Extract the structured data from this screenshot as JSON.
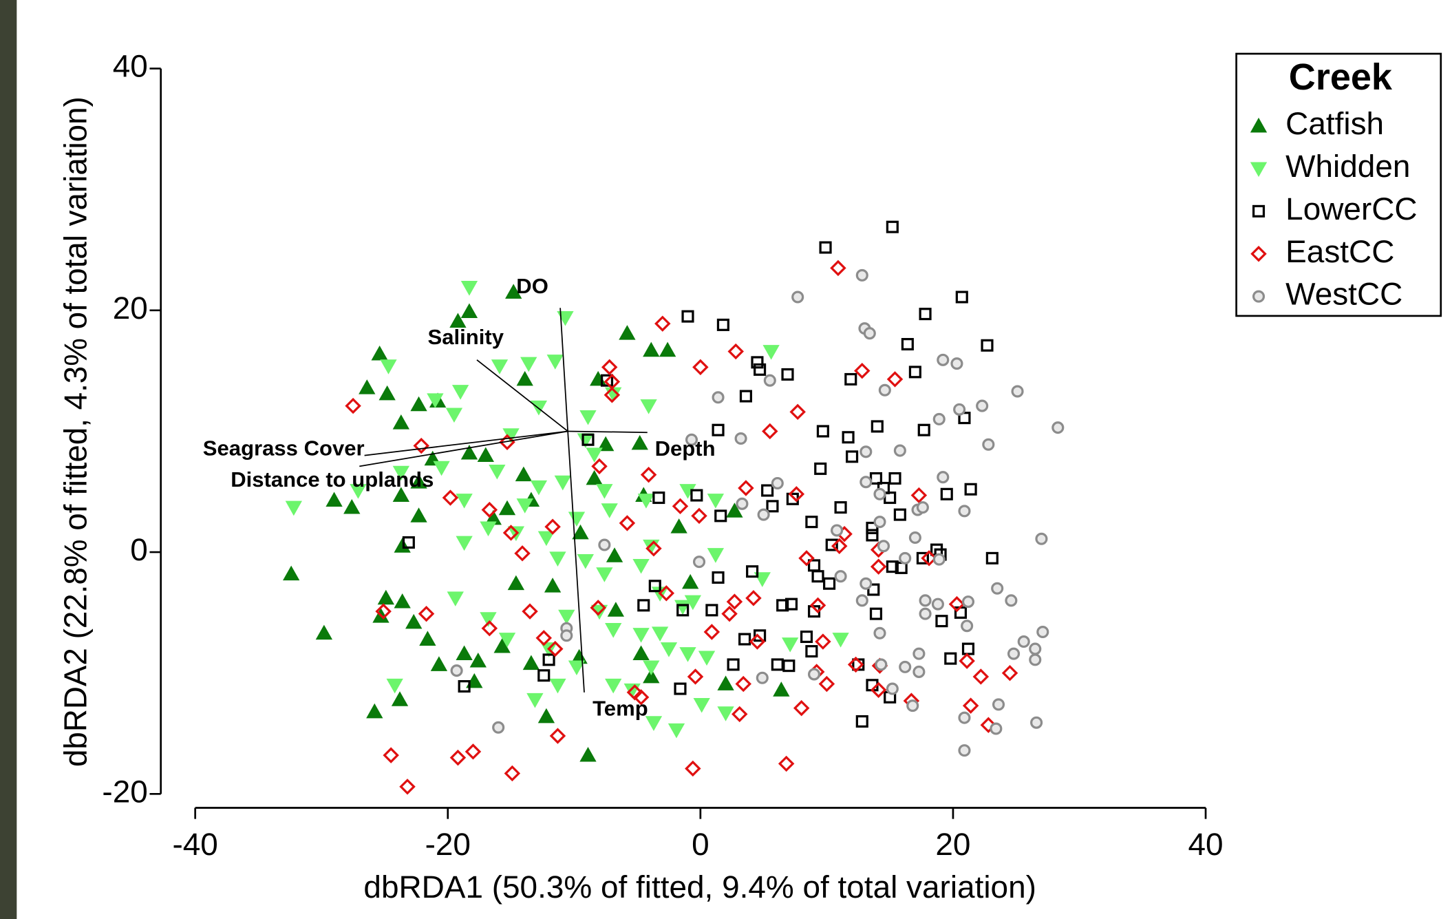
{
  "chart_data": {
    "type": "scatter",
    "x_label": "dbRDA1 (50.3% of fitted, 9.4% of total variation)",
    "y_label": "dbRDA2 (22.8% of fitted, 4.3% of total variation)",
    "xlim": [
      -40,
      40
    ],
    "xticks": [
      -40,
      -20,
      0,
      20,
      40
    ],
    "ylim": [
      -20,
      40
    ],
    "yticks": [
      -20,
      0,
      20,
      40
    ],
    "legend_title": "Creek",
    "legend_position": "outside-top-right",
    "series": [
      {
        "name": "Catfish",
        "color": "#0a7a0a",
        "marker": "triangle-up",
        "filled": true,
        "x": [
          -14.8,
          -18.3,
          -19.2,
          -25.4,
          -26.4,
          -24.8,
          -22.3,
          -20.8,
          -23.7,
          -13.9,
          -8.1,
          -5.8,
          -3.9,
          -2.6,
          -18.3,
          -17.0,
          -21.2,
          -22.3,
          -14.0,
          -13.4,
          -15.3,
          -16.4,
          -29.0,
          -27.6,
          -23.7,
          -22.3,
          -23.6,
          -32.4,
          -29.8,
          -25.8,
          -23.8,
          -24.9,
          -23.6,
          -22.7,
          -21.6,
          -20.7,
          -18.7,
          -17.6,
          -17.9,
          -15.7,
          -13.4,
          -12.2,
          -8.9,
          -14.6,
          -11.7,
          -9.5,
          -6.8,
          -4.5,
          -1.7,
          -6.7,
          -4.8,
          -7.5,
          -8.4,
          -0.8,
          2.7,
          6.4,
          2.0,
          -3.9,
          -9.6,
          -25.3,
          -4.7
        ],
        "y": [
          21.5,
          19.9,
          19.1,
          16.4,
          13.6,
          13.1,
          12.2,
          12.5,
          10.7,
          14.3,
          14.3,
          18.1,
          16.7,
          16.7,
          8.2,
          8.0,
          7.7,
          5.8,
          6.4,
          4.3,
          3.6,
          2.8,
          4.3,
          3.7,
          4.7,
          3.0,
          0.5,
          -1.8,
          -6.7,
          -13.2,
          -12.2,
          -3.8,
          -4.1,
          -5.8,
          -7.2,
          -9.3,
          -8.4,
          -9.0,
          -10.7,
          -7.8,
          -9.2,
          -13.6,
          -16.8,
          -2.6,
          -2.8,
          1.6,
          -0.3,
          4.7,
          2.1,
          -4.8,
          9.0,
          8.9,
          6.1,
          -2.5,
          3.4,
          -11.4,
          -10.9,
          -10.3,
          -8.7,
          -5.3,
          -8.4
        ]
      },
      {
        "name": "Whidden",
        "color": "#6cf56c",
        "marker": "triangle-down",
        "filled": true,
        "x": [
          -18.3,
          -10.7,
          -13.6,
          -11.5,
          -15.9,
          -19.0,
          -21.0,
          -19.5,
          -24.7,
          -8.9,
          -6.9,
          -4.1,
          -12.8,
          -9.1,
          -15.0,
          -8.4,
          -10.9,
          -12.8,
          -16.1,
          -13.9,
          -20.5,
          -23.7,
          -32.2,
          -27.1,
          -18.7,
          -16.8,
          -14.6,
          -18.7,
          -12.2,
          -9.8,
          -7.2,
          -4.3,
          -7.6,
          -11.3,
          -9.1,
          -3.9,
          -1.0,
          1.2,
          1.2,
          -19.4,
          -16.8,
          -15.3,
          -13.1,
          -24.2,
          -10.6,
          -8.0,
          -6.9,
          -4.7,
          -3.2,
          -2.5,
          -1.0,
          0.5,
          -3.9,
          -5.4,
          -3.7,
          -1.9,
          2.0,
          0.1,
          4.9,
          7.1,
          11.1,
          -1.4,
          -0.6,
          5.6,
          -7.6,
          -4.7,
          -3.2,
          -12.0,
          -9.8,
          -11.3,
          -6.9
        ],
        "y": [
          21.9,
          19.4,
          15.6,
          15.8,
          15.4,
          13.3,
          12.6,
          11.4,
          15.4,
          11.2,
          13.1,
          12.1,
          12.0,
          9.3,
          9.7,
          8.1,
          5.8,
          5.4,
          6.7,
          3.9,
          7.0,
          6.6,
          3.7,
          5.1,
          4.3,
          2.0,
          1.6,
          0.8,
          1.2,
          2.8,
          3.5,
          4.3,
          -1.8,
          -0.5,
          -0.7,
          0.5,
          5.1,
          -0.2,
          4.3,
          -3.8,
          -5.5,
          -7.2,
          -12.2,
          -11.0,
          -5.3,
          -4.9,
          -6.4,
          -6.8,
          -6.7,
          -8.0,
          -8.4,
          -8.7,
          -9.5,
          -11.4,
          -14.1,
          -14.7,
          -13.3,
          -12.6,
          -2.2,
          -7.6,
          -7.2,
          -4.5,
          -4.1,
          16.6,
          5.1,
          -1.1,
          -3.4,
          -8.0,
          -9.5,
          -11.0,
          -11.0
        ]
      },
      {
        "name": "LowerCC",
        "color": "#000000",
        "marker": "square",
        "filled": false,
        "x": [
          15.2,
          9.9,
          20.7,
          17.8,
          -1.0,
          1.8,
          22.7,
          16.4,
          4.5,
          4.7,
          6.9,
          17.0,
          11.9,
          3.6,
          20.9,
          9.7,
          14.0,
          11.7,
          17.7,
          1.4,
          12.0,
          9.5,
          13.9,
          15.4,
          14.5,
          15.0,
          21.4,
          19.5,
          -3.3,
          -0.3,
          5.3,
          7.3,
          5.7,
          8.8,
          15.8,
          11.1,
          1.6,
          13.6,
          13.6,
          10.4,
          18.7,
          19.0,
          23.1,
          17.6,
          15.2,
          15.9,
          9.0,
          9.3,
          10.2,
          1.4,
          4.1,
          13.7,
          -3.6,
          -4.5,
          0.9,
          6.5,
          7.2,
          9.0,
          13.9,
          19.1,
          20.6,
          3.5,
          4.7,
          8.4,
          8.8,
          21.2,
          19.8,
          2.6,
          6.1,
          7.0,
          12.5,
          13.6,
          15.0,
          12.8,
          -18.7,
          -12.4,
          -12.0,
          -1.6,
          -23.1,
          -8.9,
          -7.4,
          -1.4
        ],
        "y": [
          26.9,
          25.2,
          21.1,
          19.7,
          19.5,
          18.8,
          17.1,
          17.2,
          15.7,
          15.1,
          14.7,
          14.9,
          14.3,
          12.9,
          11.1,
          10.0,
          10.4,
          9.5,
          10.1,
          10.1,
          7.9,
          6.9,
          6.1,
          6.1,
          5.3,
          4.5,
          5.2,
          4.8,
          4.5,
          4.7,
          5.1,
          4.4,
          3.8,
          2.5,
          3.1,
          3.7,
          3.0,
          2.0,
          1.4,
          0.6,
          0.2,
          -0.2,
          -0.5,
          -0.5,
          -1.2,
          -1.3,
          -1.1,
          -2.0,
          -2.6,
          -2.1,
          -1.6,
          -3.1,
          -2.8,
          -4.4,
          -4.8,
          -4.4,
          -4.3,
          -4.9,
          -5.1,
          -5.7,
          -5.0,
          -7.2,
          -6.9,
          -7.0,
          -8.2,
          -8.0,
          -8.8,
          -9.3,
          -9.3,
          -9.4,
          -9.3,
          -11.0,
          -12.0,
          -14.0,
          -11.1,
          -10.2,
          -8.9,
          -11.3,
          0.8,
          9.3,
          14.2,
          -4.8
        ]
      },
      {
        "name": "EastCC",
        "color": "#e01010",
        "marker": "diamond",
        "filled": false,
        "x": [
          10.9,
          -3.0,
          2.8,
          -7.2,
          -7.0,
          -7.0,
          0.0,
          12.8,
          15.4,
          7.7,
          -27.5,
          -22.1,
          -15.3,
          5.5,
          -8.0,
          -4.1,
          -1.6,
          3.6,
          7.6,
          17.3,
          -19.8,
          -16.7,
          -15.0,
          -14.1,
          -11.7,
          -5.8,
          -3.7,
          -0.1,
          8.4,
          11.4,
          11.0,
          14.1,
          14.1,
          18.1,
          -21.7,
          -25.1,
          -16.7,
          -13.5,
          -8.1,
          -2.7,
          2.7,
          2.3,
          4.2,
          9.3,
          0.9,
          4.5,
          -12.4,
          -11.5,
          9.7,
          12.3,
          14.2,
          9.2,
          10.0,
          20.3,
          21.1,
          24.5,
          22.2,
          21.4,
          22.8,
          14.1,
          16.7,
          -5.2,
          -4.7,
          -0.4,
          3.4,
          8.0,
          3.1,
          -24.5,
          -23.2,
          -19.2,
          -18.0,
          -14.9,
          -11.3,
          -0.6,
          6.8
        ],
        "y": [
          23.5,
          18.9,
          16.6,
          15.3,
          14.1,
          13.0,
          15.3,
          15.0,
          14.3,
          11.6,
          12.1,
          8.8,
          9.1,
          10.0,
          7.1,
          6.4,
          3.8,
          5.3,
          4.8,
          4.7,
          4.5,
          3.5,
          1.6,
          -0.1,
          2.1,
          2.4,
          0.3,
          3.0,
          -0.5,
          1.5,
          0.5,
          0.2,
          -1.2,
          -0.5,
          -5.1,
          -4.9,
          -6.3,
          -4.9,
          -4.6,
          -3.4,
          -4.1,
          -5.1,
          -3.8,
          -4.4,
          -6.6,
          -7.4,
          -7.1,
          -8.0,
          -7.4,
          -9.3,
          -9.4,
          -9.9,
          -10.9,
          -4.3,
          -9.0,
          -10.0,
          -10.3,
          -12.7,
          -14.3,
          -11.4,
          -12.3,
          -11.6,
          -12.0,
          -10.3,
          -10.9,
          -12.9,
          -13.4,
          -16.8,
          -19.4,
          -17.0,
          -16.5,
          -18.3,
          -15.2,
          -17.9,
          -17.5
        ]
      },
      {
        "name": "WestCC",
        "color": "#8c8c8c",
        "marker": "circle",
        "filled": false,
        "x": [
          12.8,
          7.7,
          13.0,
          13.4,
          19.2,
          20.3,
          25.1,
          5.5,
          1.4,
          14.6,
          22.3,
          28.3,
          20.5,
          18.9,
          22.8,
          13.1,
          15.8,
          -0.7,
          3.2,
          6.1,
          13.1,
          19.2,
          20.9,
          14.2,
          14.2,
          17.2,
          17.6,
          27.0,
          10.8,
          14.5,
          16.2,
          17.0,
          18.9,
          5.0,
          3.3,
          -0.1,
          -7.6,
          23.5,
          24.6,
          13.1,
          11.1,
          12.8,
          17.8,
          18.8,
          21.2,
          17.8,
          21.1,
          14.2,
          27.1,
          25.6,
          26.5,
          24.8,
          26.5,
          14.3,
          16.2,
          17.3,
          17.3,
          9.0,
          15.2,
          16.8,
          23.6,
          20.9,
          23.4,
          26.6,
          20.9,
          -10.6,
          -10.6,
          -19.3,
          -16.0,
          4.9
        ],
        "y": [
          22.9,
          21.1,
          18.5,
          18.1,
          15.9,
          15.6,
          13.3,
          14.2,
          12.8,
          13.4,
          12.1,
          10.3,
          11.8,
          11.0,
          8.9,
          8.3,
          8.4,
          9.3,
          9.4,
          5.7,
          5.8,
          6.2,
          3.4,
          4.8,
          2.5,
          3.5,
          3.7,
          1.1,
          1.8,
          0.5,
          -0.5,
          1.2,
          -0.6,
          3.1,
          4.0,
          -0.8,
          0.6,
          -3.0,
          -4.0,
          -2.6,
          -2.0,
          -4.0,
          -4.0,
          -4.3,
          -4.1,
          -5.1,
          -6.1,
          -6.7,
          -6.6,
          -7.4,
          -8.0,
          -8.4,
          -8.9,
          -9.3,
          -9.5,
          -9.9,
          -8.4,
          -10.1,
          -11.3,
          -12.7,
          -12.6,
          -13.7,
          -14.6,
          -14.1,
          -16.4,
          -6.3,
          -6.9,
          -9.8,
          -14.5,
          -10.4
        ]
      }
    ],
    "vector_origin": [
      -10.5,
      10.0
    ],
    "vectors": [
      {
        "label": "DO",
        "x": -11.1,
        "y": 20.2
      },
      {
        "label": "Salinity",
        "x": -17.7,
        "y": 15.9
      },
      {
        "label": "Depth",
        "x": -4.2,
        "y": 9.9
      },
      {
        "label": "Seagrass Cover",
        "x": -26.6,
        "y": 8.0
      },
      {
        "label": "Distance to uplands",
        "x": -27.0,
        "y": 7.1
      },
      {
        "label": "Temp",
        "x": -9.2,
        "y": -11.6
      }
    ]
  }
}
